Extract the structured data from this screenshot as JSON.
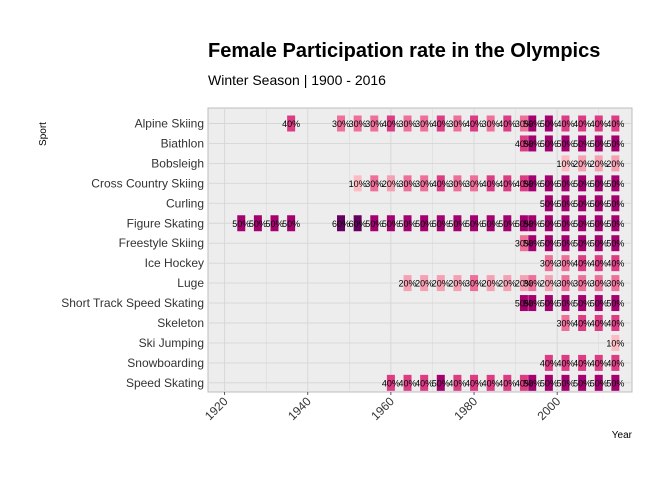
{
  "chart_data": {
    "type": "heatmap",
    "title": "Female Participation rate in the Olympics",
    "subtitle": "Winter Season | 1900 - 2016",
    "xlabel": "Year",
    "ylabel": "Sport",
    "xlim": [
      1916,
      2018
    ],
    "x_ticks": [
      1920,
      1940,
      1960,
      1980,
      2000
    ],
    "grid": true,
    "legend": "none",
    "categories": [
      "Alpine Skiing",
      "Biathlon",
      "Bobsleigh",
      "Cross Country Skiing",
      "Curling",
      "Figure Skating",
      "Freestyle Skiing",
      "Ice Hockey",
      "Luge",
      "Short Track Speed Skating",
      "Skeleton",
      "Ski Jumping",
      "Snowboarding",
      "Speed Skating"
    ],
    "series": [
      {
        "sport": "Alpine Skiing",
        "points": [
          {
            "year": 1936,
            "pct": 40
          },
          {
            "year": 1948,
            "pct": 30
          },
          {
            "year": 1952,
            "pct": 30
          },
          {
            "year": 1956,
            "pct": 30
          },
          {
            "year": 1960,
            "pct": 40
          },
          {
            "year": 1964,
            "pct": 30
          },
          {
            "year": 1968,
            "pct": 30
          },
          {
            "year": 1972,
            "pct": 40
          },
          {
            "year": 1976,
            "pct": 30
          },
          {
            "year": 1980,
            "pct": 40
          },
          {
            "year": 1984,
            "pct": 30
          },
          {
            "year": 1988,
            "pct": 40
          },
          {
            "year": 1992,
            "pct": 30
          },
          {
            "year": 1994,
            "pct": 50
          },
          {
            "year": 1998,
            "pct": 50
          },
          {
            "year": 2002,
            "pct": 40
          },
          {
            "year": 2006,
            "pct": 40
          },
          {
            "year": 2010,
            "pct": 40
          },
          {
            "year": 2014,
            "pct": 40
          }
        ]
      },
      {
        "sport": "Biathlon",
        "points": [
          {
            "year": 1992,
            "pct": 40
          },
          {
            "year": 1994,
            "pct": 50
          },
          {
            "year": 1998,
            "pct": 50
          },
          {
            "year": 2002,
            "pct": 50
          },
          {
            "year": 2006,
            "pct": 50
          },
          {
            "year": 2010,
            "pct": 50
          },
          {
            "year": 2014,
            "pct": 50
          }
        ]
      },
      {
        "sport": "Bobsleigh",
        "points": [
          {
            "year": 2002,
            "pct": 10
          },
          {
            "year": 2006,
            "pct": 20
          },
          {
            "year": 2010,
            "pct": 20
          },
          {
            "year": 2014,
            "pct": 20
          }
        ]
      },
      {
        "sport": "Cross Country Skiing",
        "points": [
          {
            "year": 1952,
            "pct": 10
          },
          {
            "year": 1956,
            "pct": 30
          },
          {
            "year": 1960,
            "pct": 20
          },
          {
            "year": 1964,
            "pct": 30
          },
          {
            "year": 1968,
            "pct": 30
          },
          {
            "year": 1972,
            "pct": 40
          },
          {
            "year": 1976,
            "pct": 30
          },
          {
            "year": 1980,
            "pct": 30
          },
          {
            "year": 1984,
            "pct": 40
          },
          {
            "year": 1988,
            "pct": 40
          },
          {
            "year": 1992,
            "pct": 40
          },
          {
            "year": 1994,
            "pct": 50
          },
          {
            "year": 1998,
            "pct": 50
          },
          {
            "year": 2002,
            "pct": 50
          },
          {
            "year": 2006,
            "pct": 50
          },
          {
            "year": 2010,
            "pct": 50
          },
          {
            "year": 2014,
            "pct": 50
          }
        ]
      },
      {
        "sport": "Curling",
        "points": [
          {
            "year": 1998,
            "pct": 50
          },
          {
            "year": 2002,
            "pct": 50
          },
          {
            "year": 2006,
            "pct": 50
          },
          {
            "year": 2010,
            "pct": 50
          },
          {
            "year": 2014,
            "pct": 50
          }
        ]
      },
      {
        "sport": "Figure Skating",
        "points": [
          {
            "year": 1924,
            "pct": 50
          },
          {
            "year": 1928,
            "pct": 50
          },
          {
            "year": 1932,
            "pct": 50
          },
          {
            "year": 1936,
            "pct": 50
          },
          {
            "year": 1948,
            "pct": 60
          },
          {
            "year": 1952,
            "pct": 60
          },
          {
            "year": 1956,
            "pct": 50
          },
          {
            "year": 1960,
            "pct": 50
          },
          {
            "year": 1964,
            "pct": 50
          },
          {
            "year": 1968,
            "pct": 50
          },
          {
            "year": 1972,
            "pct": 50
          },
          {
            "year": 1976,
            "pct": 50
          },
          {
            "year": 1980,
            "pct": 50
          },
          {
            "year": 1984,
            "pct": 50
          },
          {
            "year": 1988,
            "pct": 50
          },
          {
            "year": 1992,
            "pct": 50
          },
          {
            "year": 1994,
            "pct": 50
          },
          {
            "year": 1998,
            "pct": 50
          },
          {
            "year": 2002,
            "pct": 50
          },
          {
            "year": 2006,
            "pct": 50
          },
          {
            "year": 2010,
            "pct": 50
          },
          {
            "year": 2014,
            "pct": 50
          }
        ]
      },
      {
        "sport": "Freestyle Skiing",
        "points": [
          {
            "year": 1992,
            "pct": 30
          },
          {
            "year": 1994,
            "pct": 50
          },
          {
            "year": 1998,
            "pct": 50
          },
          {
            "year": 2002,
            "pct": 50
          },
          {
            "year": 2006,
            "pct": 50
          },
          {
            "year": 2010,
            "pct": 50
          },
          {
            "year": 2014,
            "pct": 50
          }
        ]
      },
      {
        "sport": "Ice Hockey",
        "points": [
          {
            "year": 1998,
            "pct": 30
          },
          {
            "year": 2002,
            "pct": 30
          },
          {
            "year": 2006,
            "pct": 40
          },
          {
            "year": 2010,
            "pct": 40
          },
          {
            "year": 2014,
            "pct": 40
          }
        ]
      },
      {
        "sport": "Luge",
        "points": [
          {
            "year": 1964,
            "pct": 20
          },
          {
            "year": 1968,
            "pct": 20
          },
          {
            "year": 1972,
            "pct": 20
          },
          {
            "year": 1976,
            "pct": 20
          },
          {
            "year": 1980,
            "pct": 30
          },
          {
            "year": 1984,
            "pct": 20
          },
          {
            "year": 1988,
            "pct": 20
          },
          {
            "year": 1992,
            "pct": 20
          },
          {
            "year": 1994,
            "pct": 30
          },
          {
            "year": 1998,
            "pct": 20
          },
          {
            "year": 2002,
            "pct": 30
          },
          {
            "year": 2006,
            "pct": 30
          },
          {
            "year": 2010,
            "pct": 30
          },
          {
            "year": 2014,
            "pct": 30
          }
        ]
      },
      {
        "sport": "Short Track Speed Skating",
        "points": [
          {
            "year": 1992,
            "pct": 50
          },
          {
            "year": 1994,
            "pct": 50
          },
          {
            "year": 1998,
            "pct": 50
          },
          {
            "year": 2002,
            "pct": 50
          },
          {
            "year": 2006,
            "pct": 50
          },
          {
            "year": 2010,
            "pct": 50
          },
          {
            "year": 2014,
            "pct": 50
          }
        ]
      },
      {
        "sport": "Skeleton",
        "points": [
          {
            "year": 2002,
            "pct": 30
          },
          {
            "year": 2006,
            "pct": 40
          },
          {
            "year": 2010,
            "pct": 40
          },
          {
            "year": 2014,
            "pct": 40
          }
        ]
      },
      {
        "sport": "Ski Jumping",
        "points": [
          {
            "year": 2014,
            "pct": 10
          }
        ]
      },
      {
        "sport": "Snowboarding",
        "points": [
          {
            "year": 1998,
            "pct": 40
          },
          {
            "year": 2002,
            "pct": 40
          },
          {
            "year": 2006,
            "pct": 40
          },
          {
            "year": 2010,
            "pct": 40
          },
          {
            "year": 2014,
            "pct": 40
          }
        ]
      },
      {
        "sport": "Speed Skating",
        "points": [
          {
            "year": 1960,
            "pct": 40
          },
          {
            "year": 1964,
            "pct": 40
          },
          {
            "year": 1968,
            "pct": 40
          },
          {
            "year": 1972,
            "pct": 50
          },
          {
            "year": 1976,
            "pct": 40
          },
          {
            "year": 1980,
            "pct": 40
          },
          {
            "year": 1984,
            "pct": 40
          },
          {
            "year": 1988,
            "pct": 40
          },
          {
            "year": 1992,
            "pct": 40
          },
          {
            "year": 1994,
            "pct": 50
          },
          {
            "year": 1998,
            "pct": 50
          },
          {
            "year": 2002,
            "pct": 50
          },
          {
            "year": 2006,
            "pct": 50
          },
          {
            "year": 2010,
            "pct": 50
          },
          {
            "year": 2014,
            "pct": 50
          }
        ]
      }
    ],
    "color_scale": {
      "10": "#fdbcc4",
      "20": "#f6a0b4",
      "30": "#ee6f9a",
      "40": "#dc3c84",
      "50": "#a5006f",
      "60": "#66005e"
    }
  }
}
